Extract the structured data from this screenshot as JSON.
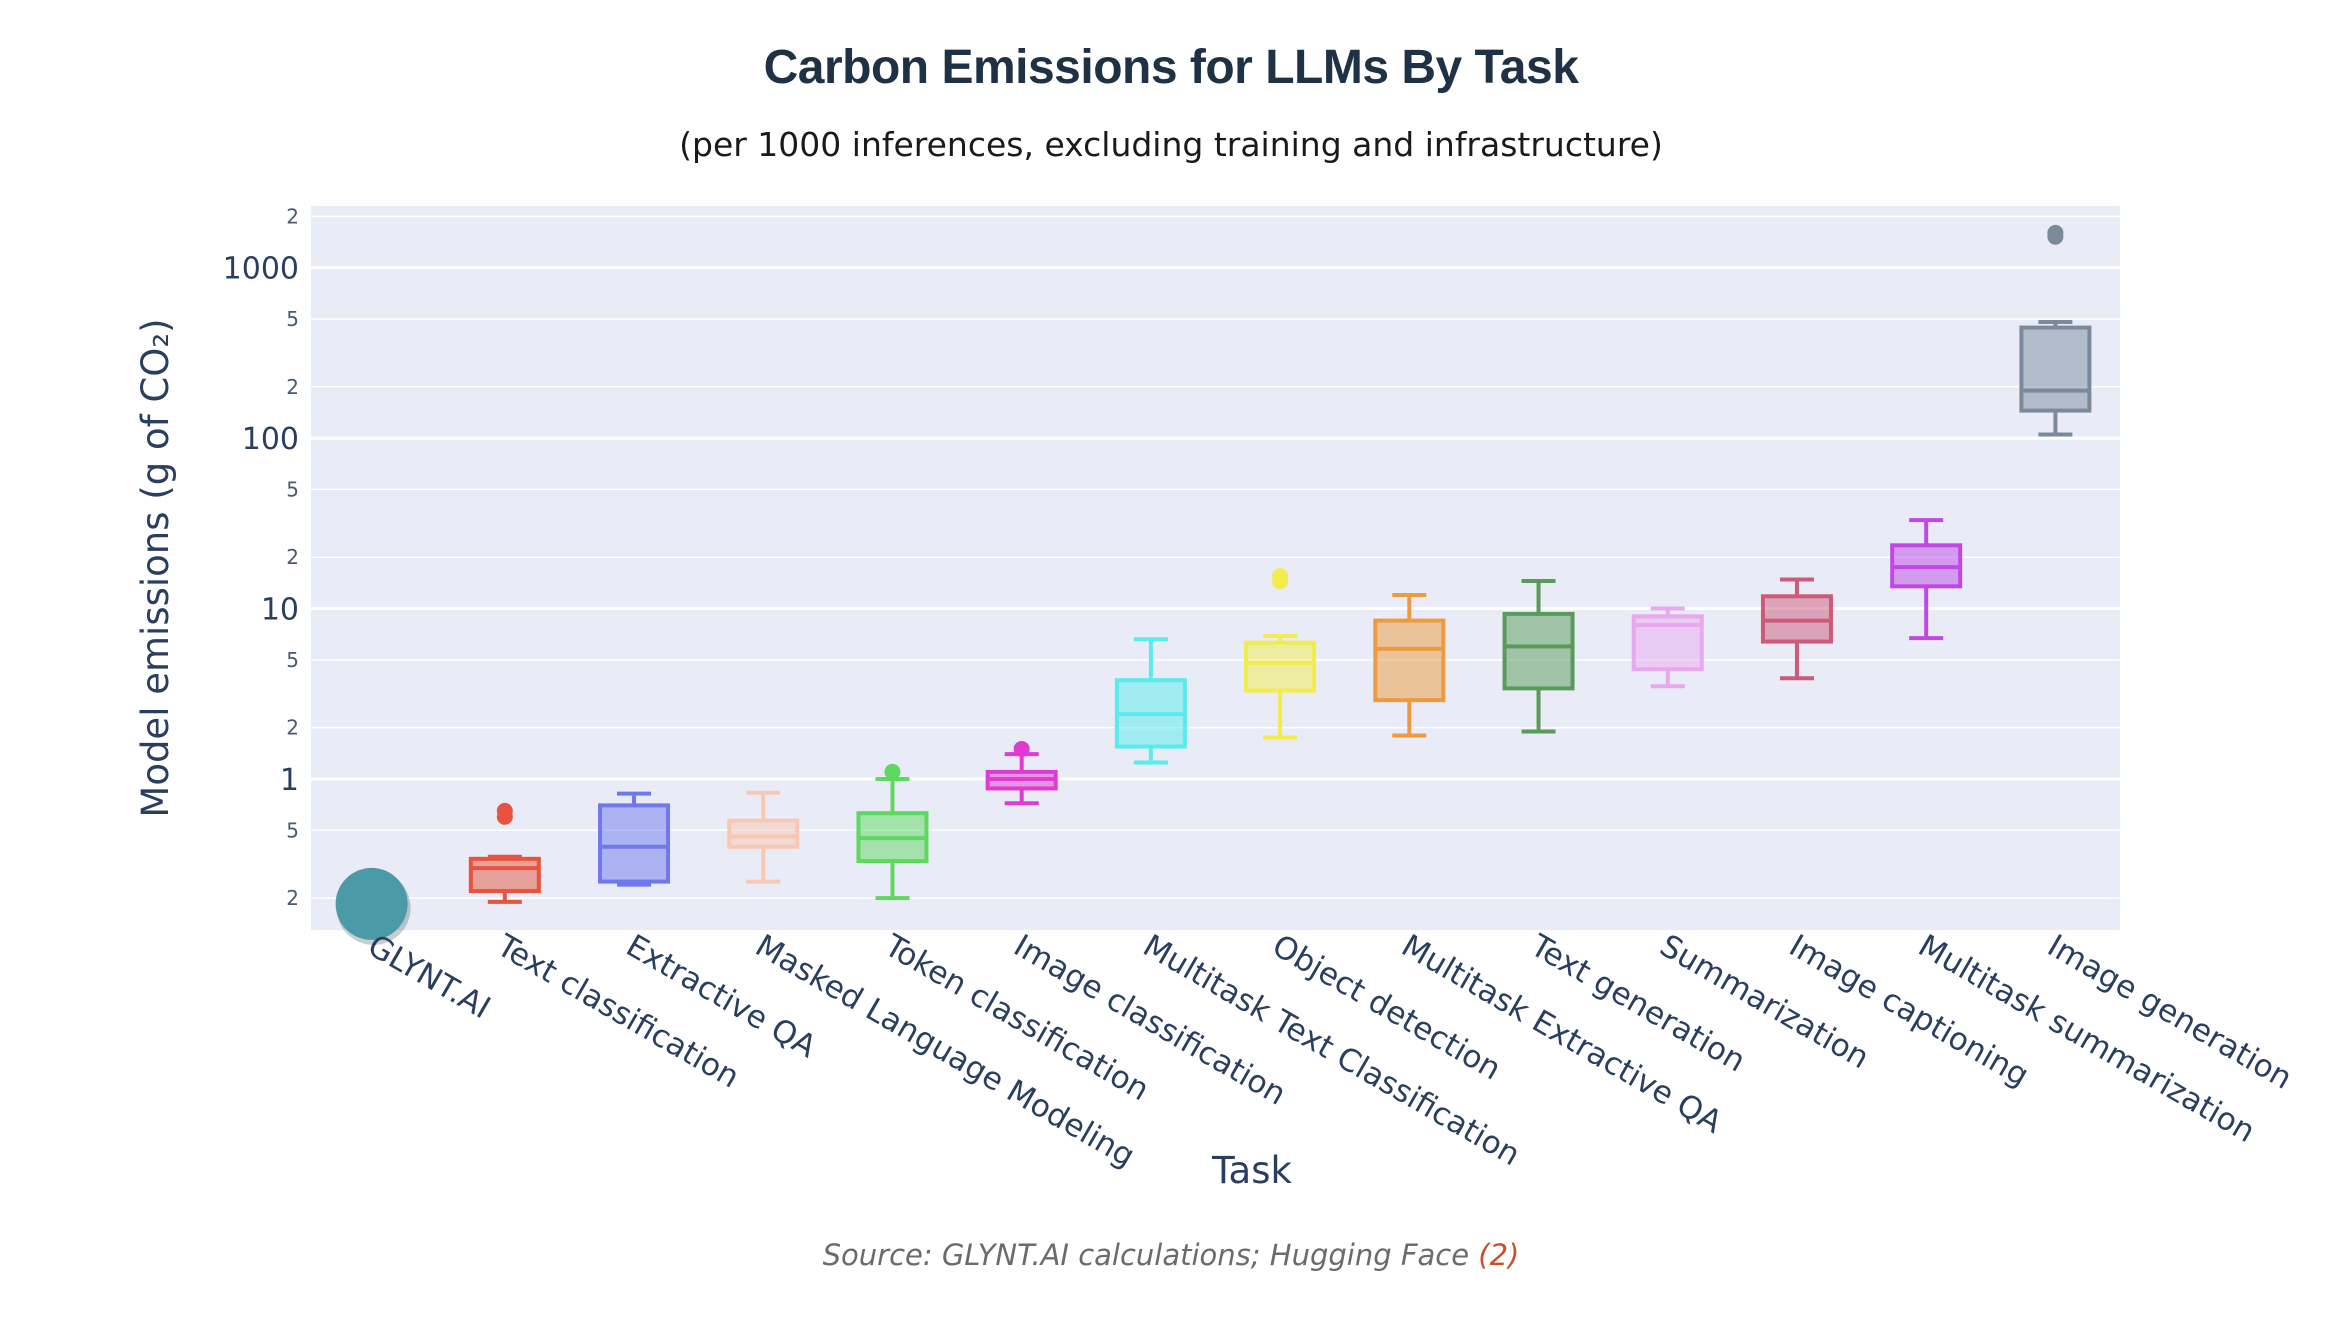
{
  "header": {
    "title": "Carbon Emissions for LLMs By Task",
    "subtitle": "(per 1000 inferences, excluding training and infrastructure)"
  },
  "footer": {
    "source_text": "Source: GLYNT.AI calculations; Hugging Face ",
    "source_ref": "(2)"
  },
  "chart_data": {
    "type": "box",
    "xlabel": "Task",
    "ylabel": "Model emissions (g of CO₂)",
    "yscale": "log",
    "ylim": [
      0.13,
      2300
    ],
    "y_major_ticks": [
      1,
      10,
      100,
      1000
    ],
    "y_major_labels": [
      "1",
      "10",
      "100",
      "1000"
    ],
    "y_minor_ticks": [
      0.2,
      0.5,
      2,
      5,
      20,
      50,
      200,
      500,
      2000
    ],
    "y_minor_labels": [
      "2",
      "5",
      "2",
      "5",
      "2",
      "5",
      "2",
      "5",
      "2"
    ],
    "grid": true,
    "plot_background": "#e9ecf6",
    "categories": [
      "GLYNT.AI",
      "Text classification",
      "Extractive QA",
      "Masked Language Modeling",
      "Token classification",
      "Image classification",
      "Multitask Text Classification",
      "Object detection",
      "Multitask Extractive QA",
      "Text generation",
      "Summarization",
      "Image captioning",
      "Multitask summarization",
      "Image generation"
    ],
    "glynt_point": {
      "category": "GLYNT.AI",
      "value": 0.18,
      "color": "#4a9aa8"
    },
    "boxes": [
      {
        "category": "Text classification",
        "min": 0.19,
        "q1": 0.22,
        "median": 0.3,
        "q3": 0.34,
        "max": 0.35,
        "outliers": [
          0.6,
          0.65
        ],
        "color": "#e8533f"
      },
      {
        "category": "Extractive QA",
        "min": 0.24,
        "q1": 0.25,
        "median": 0.4,
        "q3": 0.7,
        "max": 0.82,
        "outliers": [],
        "color": "#7078ee"
      },
      {
        "category": "Masked Language Modeling",
        "min": 0.25,
        "q1": 0.4,
        "median": 0.46,
        "q3": 0.57,
        "max": 0.83,
        "outliers": [],
        "color": "#f8c8b4"
      },
      {
        "category": "Token classification",
        "min": 0.2,
        "q1": 0.33,
        "median": 0.45,
        "q3": 0.63,
        "max": 1.0,
        "outliers": [
          1.1
        ],
        "color": "#5ed85e"
      },
      {
        "category": "Image classification",
        "min": 0.72,
        "q1": 0.88,
        "median": 1.0,
        "q3": 1.1,
        "max": 1.4,
        "outliers": [
          1.5
        ],
        "color": "#e03bd0"
      },
      {
        "category": "Multitask Text Classification",
        "min": 1.25,
        "q1": 1.55,
        "median": 2.4,
        "q3": 3.8,
        "max": 6.6,
        "outliers": [],
        "color": "#58ecec"
      },
      {
        "category": "Object detection",
        "min": 1.75,
        "q1": 3.3,
        "median": 4.8,
        "q3": 6.3,
        "max": 6.9,
        "outliers": [
          14.5,
          15.5
        ],
        "color": "#f2ec4c"
      },
      {
        "category": "Multitask Extractive QA",
        "min": 1.8,
        "q1": 2.9,
        "median": 5.8,
        "q3": 8.5,
        "max": 12.0,
        "outliers": [],
        "color": "#ee9a3e"
      },
      {
        "category": "Text generation",
        "min": 1.9,
        "q1": 3.4,
        "median": 6.0,
        "q3": 9.3,
        "max": 14.5,
        "outliers": [],
        "color": "#5a9a5a"
      },
      {
        "category": "Summarization",
        "min": 3.5,
        "q1": 4.4,
        "median": 8.0,
        "q3": 9.0,
        "max": 10.0,
        "outliers": [],
        "color": "#e8a8ee"
      },
      {
        "category": "Image captioning",
        "min": 3.9,
        "q1": 6.4,
        "median": 8.5,
        "q3": 11.8,
        "max": 14.8,
        "outliers": [],
        "color": "#cc5a78"
      },
      {
        "category": "Multitask summarization",
        "min": 6.7,
        "q1": 13.5,
        "median": 17.5,
        "q3": 23.5,
        "max": 33.0,
        "outliers": [],
        "color": "#c048e6"
      },
      {
        "category": "Image generation",
        "min": 105,
        "q1": 145,
        "median": 190,
        "q3": 445,
        "max": 480,
        "outliers": [
          1520,
          1600
        ],
        "color": "#7b8a9b"
      }
    ]
  }
}
